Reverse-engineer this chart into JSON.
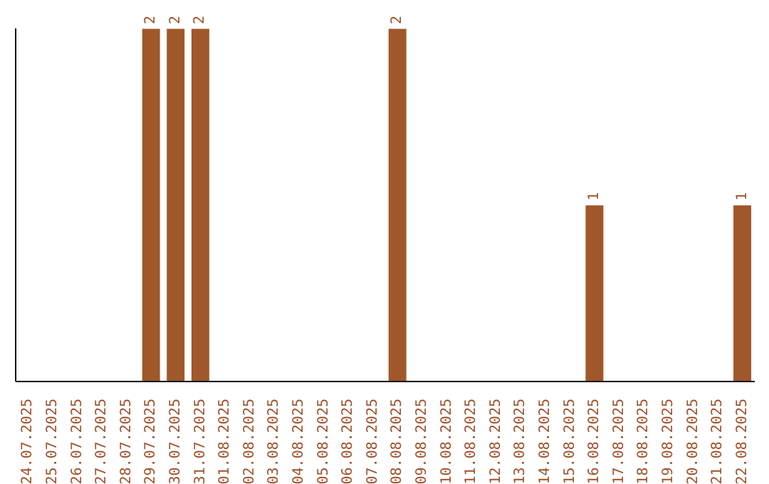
{
  "chart_data": {
    "type": "bar",
    "categories": [
      "24.07.2025",
      "25.07.2025",
      "26.07.2025",
      "27.07.2025",
      "28.07.2025",
      "29.07.2025",
      "30.07.2025",
      "31.07.2025",
      "01.08.2025",
      "02.08.2025",
      "03.08.2025",
      "04.08.2025",
      "05.08.2025",
      "06.08.2025",
      "07.08.2025",
      "08.08.2025",
      "09.08.2025",
      "10.08.2025",
      "11.08.2025",
      "12.08.2025",
      "13.08.2025",
      "14.08.2025",
      "15.08.2025",
      "16.08.2025",
      "17.08.2025",
      "18.08.2025",
      "19.08.2025",
      "20.08.2025",
      "21.08.2025",
      "22.08.2025"
    ],
    "values": [
      null,
      null,
      null,
      null,
      null,
      2,
      2,
      2,
      null,
      null,
      null,
      null,
      null,
      null,
      null,
      2,
      null,
      null,
      null,
      null,
      null,
      null,
      null,
      1,
      null,
      null,
      null,
      null,
      null,
      1
    ],
    "value_labels": [
      null,
      null,
      null,
      null,
      null,
      "2",
      "2",
      "2",
      null,
      null,
      null,
      null,
      null,
      null,
      null,
      "2",
      null,
      null,
      null,
      null,
      null,
      null,
      null,
      "1",
      null,
      null,
      null,
      null,
      null,
      "1"
    ],
    "color": "#a0572a",
    "grid": false,
    "legend": false
  }
}
